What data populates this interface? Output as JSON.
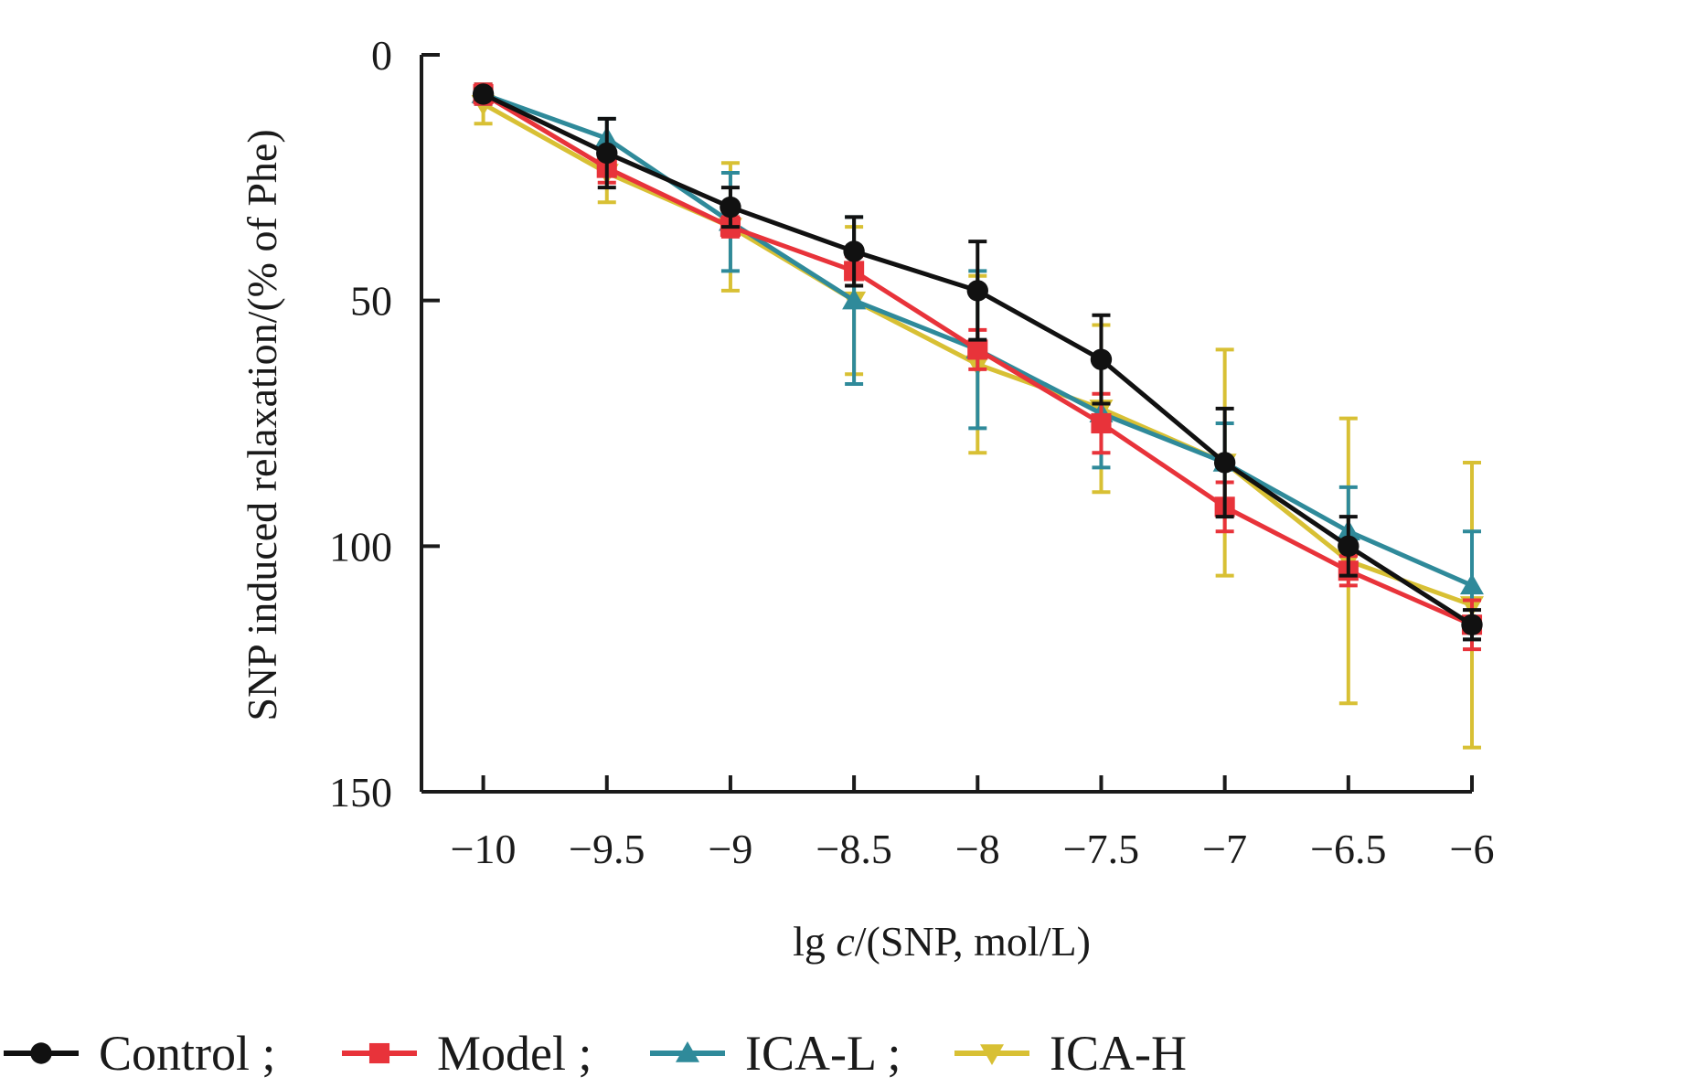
{
  "chart_data": {
    "type": "line",
    "title": "",
    "xlabel_prefix": "lg ",
    "xlabel_italic": "c",
    "xlabel_suffix": "/(SNP, mol/L)",
    "ylabel": "SNP induced relaxation/(% of Phe)",
    "x": [
      -10,
      -9.5,
      -9,
      -8.5,
      -8,
      -7.5,
      -7,
      -6.5,
      -6
    ],
    "x_tick_labels": [
      "−10",
      "−9.5",
      "−9",
      "−8.5",
      "−8",
      "−7.5",
      "−7",
      "−6.5",
      "−6"
    ],
    "y_ticks": [
      0,
      50,
      100,
      150
    ],
    "y_tick_labels": [
      "0",
      "50",
      "100",
      "150"
    ],
    "xlim": [
      -10.25,
      -6
    ],
    "ylim": [
      0,
      150
    ],
    "y_inverted": true,
    "grid": false,
    "legend_position": "bottom",
    "series": [
      {
        "name": "ICA-H",
        "legend_text": "ICA-H",
        "color": "#d8c034",
        "marker": "triangle-down",
        "values": [
          10,
          24,
          35,
          50,
          63,
          72,
          83,
          103,
          112
        ],
        "errors": [
          4,
          6,
          13,
          15,
          18,
          17,
          23,
          29,
          29
        ]
      },
      {
        "name": "ICA-L",
        "legend_text": "ICA-L ;",
        "color": "#2f8a9a",
        "marker": "triangle-up",
        "values": [
          8,
          17,
          34,
          50,
          60,
          73,
          83,
          97,
          108
        ],
        "errors": [
          2,
          4,
          10,
          17,
          16,
          11,
          8,
          9,
          11
        ]
      },
      {
        "name": "Model",
        "legend_text": "Model ;",
        "color": "#e8333a",
        "marker": "square",
        "values": [
          8,
          23,
          35,
          44,
          60,
          75,
          92,
          105,
          116
        ],
        "errors": [
          2,
          3,
          2,
          3,
          4,
          6,
          5,
          3,
          5
        ]
      },
      {
        "name": "Control",
        "legend_text": "Control ;",
        "color": "#111111",
        "marker": "circle",
        "values": [
          8,
          20,
          31,
          40,
          48,
          62,
          83,
          100,
          116
        ],
        "errors": [
          1,
          7,
          4,
          7,
          10,
          9,
          11,
          6,
          3
        ]
      }
    ],
    "legend_order": [
      "Control",
      "Model",
      "ICA-L",
      "ICA-H"
    ]
  }
}
